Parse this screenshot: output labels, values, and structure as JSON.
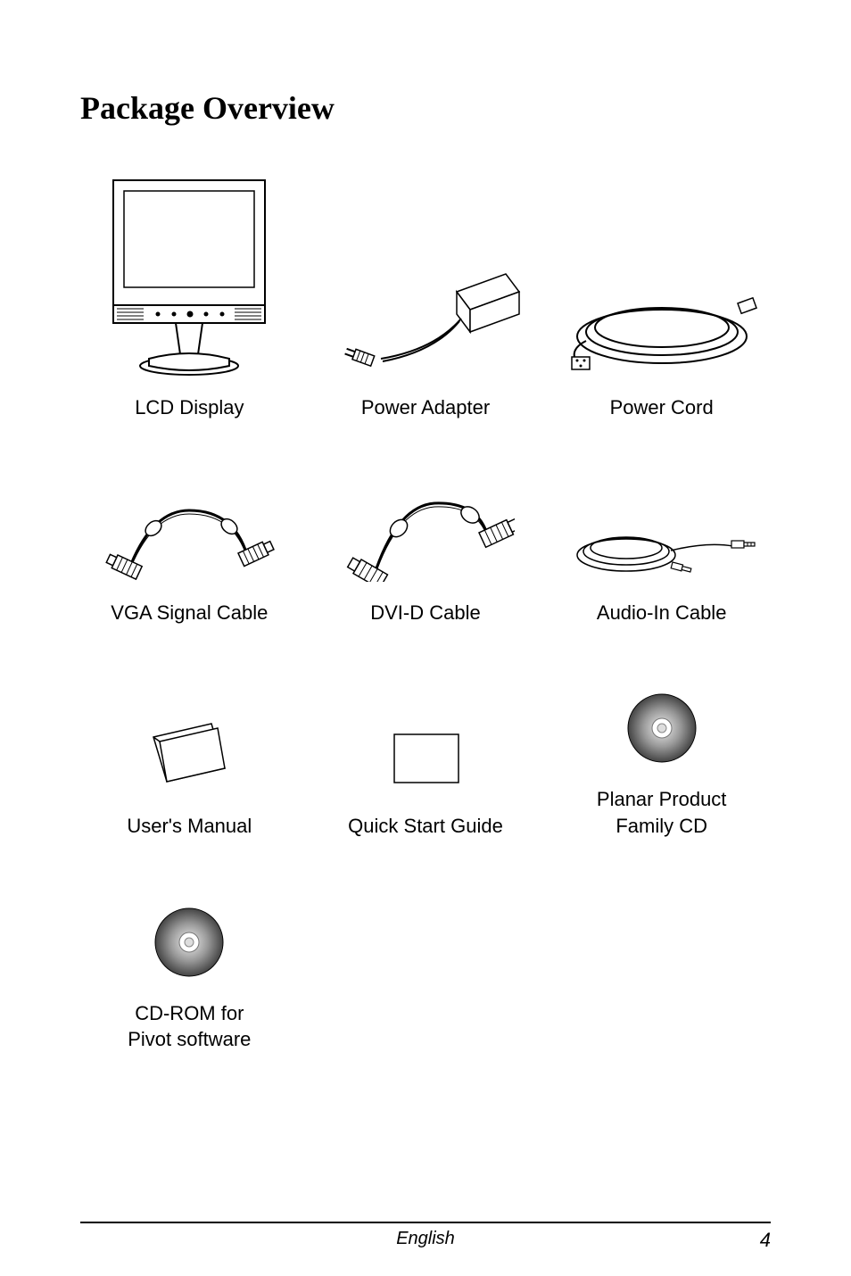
{
  "title": "Package Overview",
  "items": [
    {
      "label": "LCD Display"
    },
    {
      "label": "Power Adapter"
    },
    {
      "label": "Power Cord"
    },
    {
      "label": "VGA Signal Cable"
    },
    {
      "label": "DVI-D  Cable"
    },
    {
      "label": "Audio-In Cable"
    },
    {
      "label": "User's Manual"
    },
    {
      "label": "Quick Start Guide"
    },
    {
      "label": "Planar Product\nFamily CD"
    },
    {
      "label": "CD-ROM for\nPivot software"
    }
  ],
  "footer": {
    "language": "English",
    "page_number": "4"
  },
  "colors": {
    "text": "#000000",
    "background": "#ffffff",
    "stroke": "#000000",
    "grad_light": "#dddddd",
    "grad_dark": "#555555"
  },
  "typography": {
    "title_font": "Times New Roman, serif",
    "title_size_pt": 27,
    "title_weight": "bold",
    "body_font": "Arial, sans-serif",
    "caption_size_pt": 17,
    "footer_size_pt": 15
  }
}
